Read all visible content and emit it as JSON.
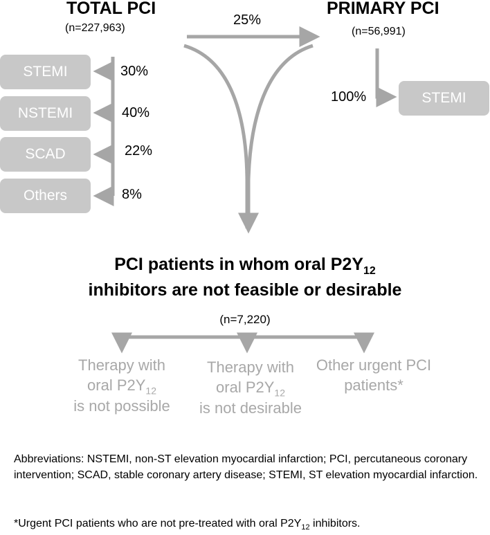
{
  "total_pci": {
    "title": "TOTAL PCI",
    "n": "(n=227,963)"
  },
  "primary_pci": {
    "title": "PRIMARY PCI",
    "n": "(n=56,991)"
  },
  "flow": {
    "primary_share": "25%",
    "stemi_share": "100%"
  },
  "total_breakdown": [
    {
      "label": "STEMI",
      "pct": "30%"
    },
    {
      "label": "NSTEMI",
      "pct": "40%"
    },
    {
      "label": "SCAD",
      "pct": "22%"
    },
    {
      "label": "Others",
      "pct": "8%"
    }
  ],
  "primary_breakdown": {
    "label": "STEMI"
  },
  "target": {
    "line1_prefix": "PCI patients in whom oral P2Y",
    "line1_sub": "12",
    "line2": "inhibitors are not feasible or desirable",
    "n": "(n=7,220)"
  },
  "subgroups": [
    {
      "line1": "Therapy with",
      "line2_prefix": "oral P2Y",
      "line2_sub": "12",
      "line3": "is not possible"
    },
    {
      "line1": "Therapy with",
      "line2_prefix": "oral P2Y",
      "line2_sub": "12",
      "line3": "is not desirable"
    },
    {
      "line1": "Other urgent PCI",
      "line2": "patients*"
    }
  ],
  "footnotes": {
    "abbreviations": "Abbreviations: NSTEMI, non-ST elevation myocardial infarction; PCI, percutaneous coronary intervention; SCAD, stable coronary artery disease; STEMI, ST elevation myocardial infarction.",
    "asterisk_prefix": "*Urgent PCI patients who are not pre-treated with oral P2Y",
    "asterisk_sub": "12",
    "asterisk_suffix": " inhibitors."
  },
  "colors": {
    "arrow": "#a6a6a6",
    "box": "#c8c8c8",
    "subgroup_text": "#a8a8a8"
  }
}
